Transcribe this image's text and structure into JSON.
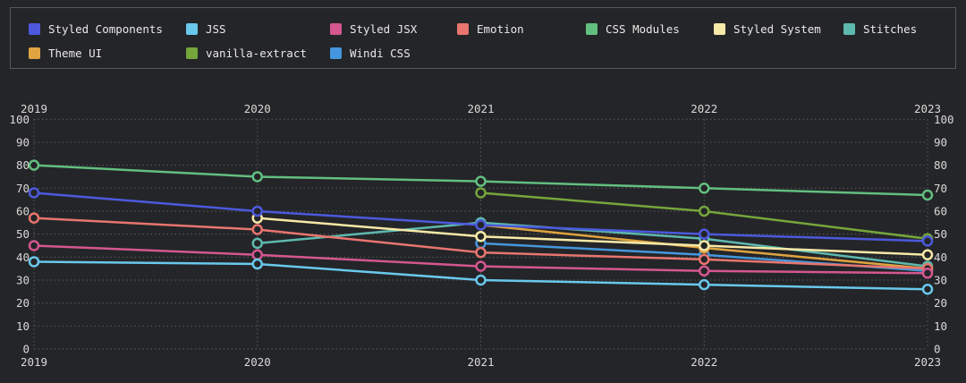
{
  "app": {
    "background": "#242528",
    "grid_color": "#5c5c5c",
    "text_color": "#d9d9d6"
  },
  "chart_data": {
    "type": "line",
    "title": "",
    "xlabel": "",
    "ylabel": "",
    "x_labels": [
      "2019",
      "2020",
      "2021",
      "2022",
      "2023"
    ],
    "y_ticks": [
      0,
      10,
      20,
      30,
      40,
      50,
      60,
      70,
      80,
      90,
      100
    ],
    "ylim": [
      0,
      100
    ],
    "grid": "dotted",
    "axis_labels_top": true,
    "axis_labels_bottom": true,
    "axis_labels_left": true,
    "axis_labels_right": true,
    "legend_position": "top",
    "point_style": "hollow-circle",
    "series": [
      {
        "name": "Styled Components",
        "color": "#4c59dd",
        "values": [
          68,
          60,
          54,
          50,
          47
        ]
      },
      {
        "name": "JSS",
        "color": "#69c8ec",
        "values": [
          38,
          37,
          30,
          28,
          26
        ]
      },
      {
        "name": "Styled JSX",
        "color": "#d4578f",
        "values": [
          45,
          41,
          36,
          34,
          33
        ]
      },
      {
        "name": "Emotion",
        "color": "#e8756f",
        "values": [
          57,
          52,
          42,
          39,
          35
        ]
      },
      {
        "name": "CSS Modules",
        "color": "#62bf80",
        "values": [
          80,
          75,
          73,
          70,
          67
        ]
      },
      {
        "name": "Styled System",
        "color": "#f7e9a8",
        "values": [
          null,
          57,
          49,
          45,
          41
        ]
      },
      {
        "name": "Stitches",
        "color": "#5eb9ae",
        "values": [
          null,
          46,
          55,
          48,
          36
        ]
      },
      {
        "name": "Theme UI",
        "color": "#dfa441",
        "values": [
          null,
          null,
          54,
          44,
          35
        ]
      },
      {
        "name": "vanilla-extract",
        "color": "#75a63c",
        "values": [
          null,
          null,
          68,
          60,
          48
        ]
      },
      {
        "name": "Windi CSS",
        "color": "#4597dd",
        "values": [
          null,
          null,
          46,
          41,
          34
        ]
      }
    ]
  }
}
